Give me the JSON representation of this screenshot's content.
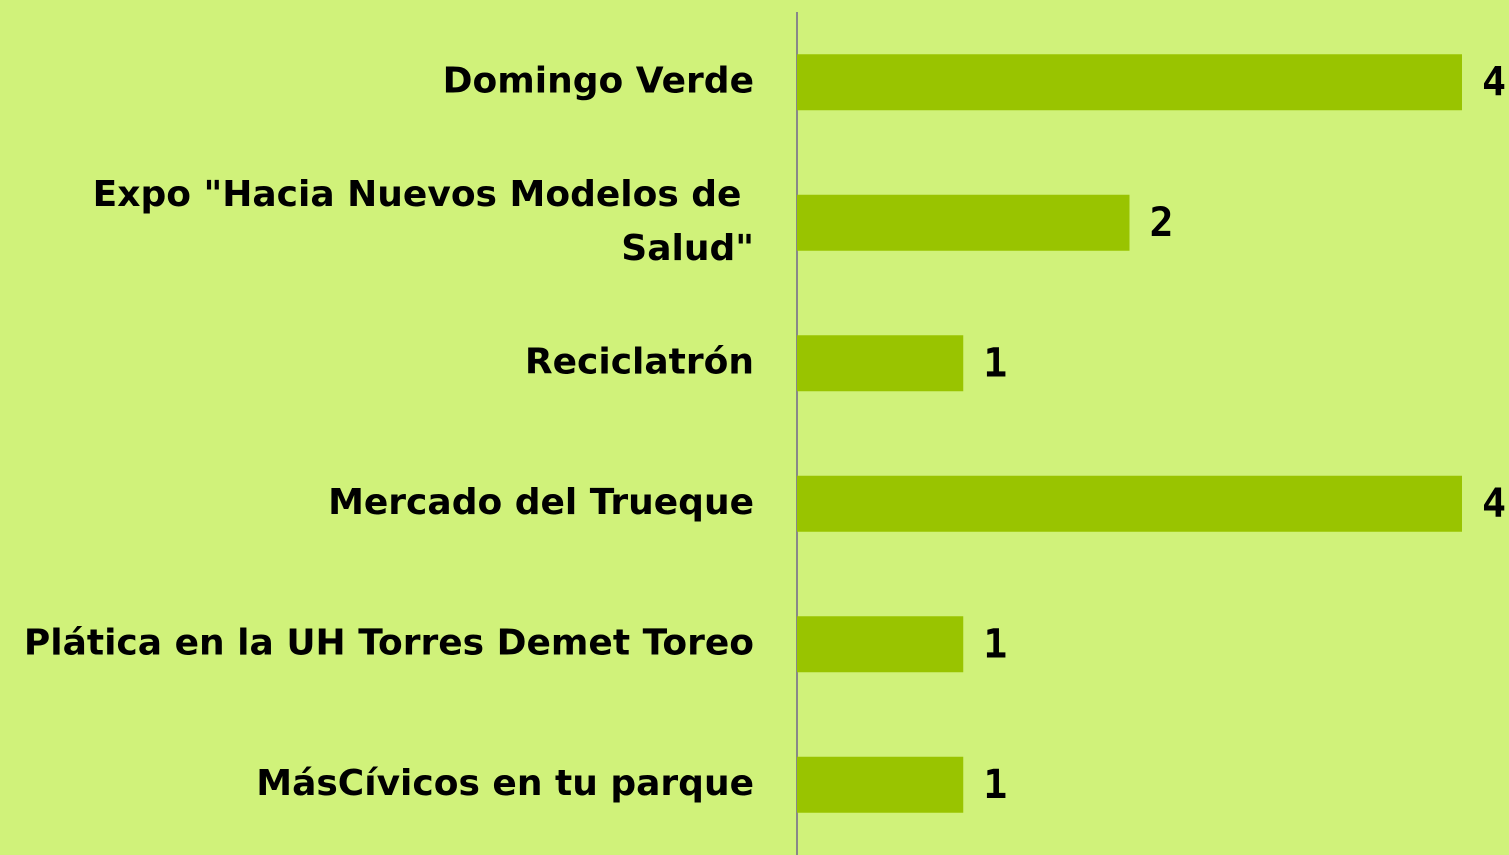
{
  "chart_data": {
    "type": "bar",
    "orientation": "horizontal",
    "categories": [
      "Domingo Verde",
      "Expo \"Hacia Nuevos Modelos de Salud\"",
      "Reciclatrón",
      "Mercado del Trueque",
      "Plática en la UH Torres Demet Toreo",
      "MásCívicos en tu parque"
    ],
    "values": [
      4,
      2,
      1,
      4,
      1,
      1
    ],
    "color": "#99c400",
    "xlim": [
      0,
      4
    ]
  }
}
